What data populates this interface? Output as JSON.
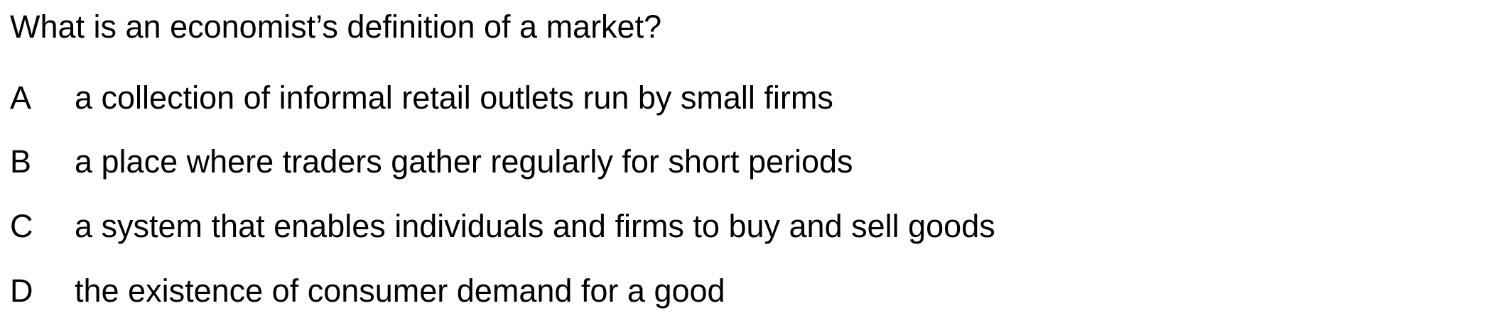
{
  "question": {
    "text": "What is an economist’s definition of a market?"
  },
  "options": [
    {
      "letter": "A",
      "text": "a collection of informal retail outlets run by small firms"
    },
    {
      "letter": "B",
      "text": "a place where traders gather regularly for short periods"
    },
    {
      "letter": "C",
      "text": "a system that enables individuals and firms to buy and sell goods"
    },
    {
      "letter": "D",
      "text": "the existence of consumer demand for a good"
    }
  ]
}
